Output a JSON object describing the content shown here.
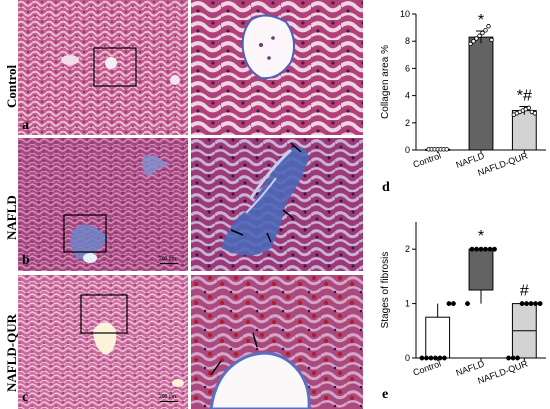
{
  "rows": [
    {
      "label": "Control",
      "letter": "a",
      "scale_left": "",
      "scale_right": ""
    },
    {
      "label": "NAFLD",
      "letter": "b",
      "scale_left": "200 μm",
      "scale_right": ""
    },
    {
      "label": "NAFLD-QUR",
      "letter": "c",
      "scale_left": "200 μm",
      "scale_right": ""
    }
  ],
  "colors": {
    "tissue_pink": "#b8477a",
    "tissue_light": "#e6b3cf",
    "collagen_blue": "#2e4ea0",
    "dark_bar": "#636363",
    "light_bar": "#d3d3d3"
  },
  "chart_data": [
    {
      "panel_letter": "d",
      "type": "bar",
      "categories": [
        "Control",
        "NAFLD",
        "NAFLD-QUR"
      ],
      "values": [
        0.05,
        8.3,
        2.9
      ],
      "errors": [
        0.03,
        0.45,
        0.3
      ],
      "points": [
        [
          0.05,
          0.05,
          0.05,
          0.05,
          0.05,
          0.05,
          0.05
        ],
        [
          7.8,
          8.0,
          8.2,
          8.4,
          8.6,
          8.8,
          9.1,
          8.1
        ],
        [
          2.6,
          2.7,
          2.8,
          2.9,
          3.0,
          3.1,
          2.8,
          2.7
        ]
      ],
      "bar_colors": [
        "#ffffff",
        "#636363",
        "#d3d3d3"
      ],
      "ylabel": "Collagen area %",
      "ylim": [
        0,
        10
      ],
      "yticks": [
        0,
        2,
        4,
        6,
        8,
        10
      ],
      "annotations": [
        {
          "category": "NAFLD",
          "text": "*"
        },
        {
          "category": "NAFLD-QUR",
          "text": "*#"
        }
      ]
    },
    {
      "panel_letter": "e",
      "type": "box",
      "categories": [
        "Control",
        "NAFLD",
        "NAFLD-QUR"
      ],
      "boxes": [
        {
          "min": 0,
          "q1": 0,
          "median": 0,
          "q3": 0.75,
          "max": 1
        },
        {
          "min": 1,
          "q1": 1.25,
          "median": 2,
          "q3": 2,
          "max": 2
        },
        {
          "min": 0,
          "q1": 0,
          "median": 0.5,
          "q3": 1,
          "max": 1
        }
      ],
      "points": [
        [
          0,
          0,
          0,
          0,
          0,
          0,
          1,
          1
        ],
        [
          1,
          2,
          2,
          2,
          2,
          2,
          2
        ],
        [
          0,
          0,
          0,
          1,
          1,
          1,
          1,
          1
        ]
      ],
      "box_colors": [
        "#ffffff",
        "#636363",
        "#d3d3d3"
      ],
      "ylabel": "Stages of fibrosis",
      "ylim": [
        0,
        2.5
      ],
      "yticks": [
        0,
        1,
        2
      ],
      "annotations": [
        {
          "category": "NAFLD",
          "text": "*"
        },
        {
          "category": "NAFLD-QUR",
          "text": "#"
        }
      ]
    }
  ]
}
